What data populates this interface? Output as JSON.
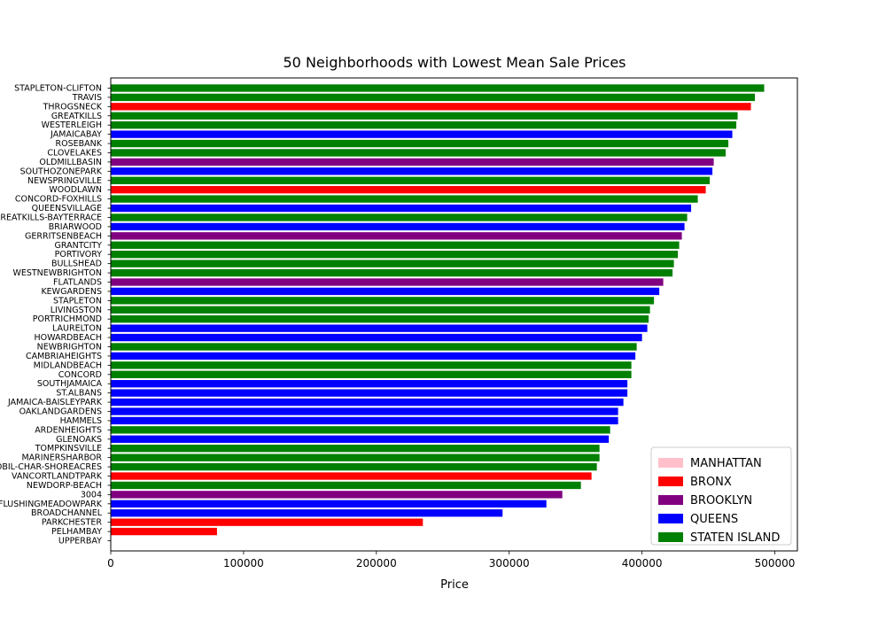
{
  "chart_data": {
    "type": "bar",
    "orientation": "horizontal",
    "title": "50 Neighborhoods with Lowest Mean Sale Prices",
    "xlabel": "Price",
    "ylabel": "",
    "xlim": [
      0,
      517000
    ],
    "xticks": [
      0,
      100000,
      200000,
      300000,
      400000,
      500000
    ],
    "grid": false,
    "legend_position": "lower-right",
    "boroughs": [
      {
        "name": "MANHATTAN",
        "color": "#ffc0cb"
      },
      {
        "name": "BRONX",
        "color": "#ff0000"
      },
      {
        "name": "BROOKLYN",
        "color": "#800080"
      },
      {
        "name": "QUEENS",
        "color": "#0000ff"
      },
      {
        "name": "STATEN ISLAND",
        "color": "#008000"
      }
    ],
    "bars": [
      {
        "label": "STAPLETON-CLIFTON",
        "value": 492000,
        "borough": "STATEN ISLAND"
      },
      {
        "label": "TRAVIS",
        "value": 485000,
        "borough": "STATEN ISLAND"
      },
      {
        "label": "THROGSNECK",
        "value": 482000,
        "borough": "BRONX"
      },
      {
        "label": "GREATKILLS",
        "value": 472000,
        "borough": "STATEN ISLAND"
      },
      {
        "label": "WESTERLEIGH",
        "value": 471000,
        "borough": "STATEN ISLAND"
      },
      {
        "label": "JAMAICABAY",
        "value": 468000,
        "borough": "QUEENS"
      },
      {
        "label": "ROSEBANK",
        "value": 465000,
        "borough": "STATEN ISLAND"
      },
      {
        "label": "CLOVELAKES",
        "value": 463000,
        "borough": "STATEN ISLAND"
      },
      {
        "label": "OLDMILLBASIN",
        "value": 454000,
        "borough": "BROOKLYN"
      },
      {
        "label": "SOUTHOZONEPARK",
        "value": 453000,
        "borough": "QUEENS"
      },
      {
        "label": "NEWSPRINGVILLE",
        "value": 451000,
        "borough": "STATEN ISLAND"
      },
      {
        "label": "WOODLAWN",
        "value": 448000,
        "borough": "BRONX"
      },
      {
        "label": "CONCORD-FOXHILLS",
        "value": 442000,
        "borough": "STATEN ISLAND"
      },
      {
        "label": "QUEENSVILLAGE",
        "value": 437000,
        "borough": "QUEENS"
      },
      {
        "label": "GREATKILLS-BAYTERRACE",
        "value": 434000,
        "borough": "STATEN ISLAND"
      },
      {
        "label": "BRIARWOOD",
        "value": 432000,
        "borough": "QUEENS"
      },
      {
        "label": "GERRITSENBEACH",
        "value": 430000,
        "borough": "BROOKLYN"
      },
      {
        "label": "GRANTCITY",
        "value": 428000,
        "borough": "STATEN ISLAND"
      },
      {
        "label": "PORTIVORY",
        "value": 427000,
        "borough": "STATEN ISLAND"
      },
      {
        "label": "BULLSHEAD",
        "value": 424000,
        "borough": "STATEN ISLAND"
      },
      {
        "label": "WESTNEWBRIGHTON",
        "value": 423000,
        "borough": "STATEN ISLAND"
      },
      {
        "label": "FLATLANDS",
        "value": 416000,
        "borough": "BROOKLYN"
      },
      {
        "label": "KEWGARDENS",
        "value": 413000,
        "borough": "QUEENS"
      },
      {
        "label": "STAPLETON",
        "value": 409000,
        "borough": "STATEN ISLAND"
      },
      {
        "label": "LIVINGSTON",
        "value": 406000,
        "borough": "STATEN ISLAND"
      },
      {
        "label": "PORTRICHMOND",
        "value": 405000,
        "borough": "STATEN ISLAND"
      },
      {
        "label": "LAURELTON",
        "value": 404000,
        "borough": "QUEENS"
      },
      {
        "label": "HOWARDBEACH",
        "value": 400000,
        "borough": "QUEENS"
      },
      {
        "label": "NEWBRIGHTON",
        "value": 396000,
        "borough": "STATEN ISLAND"
      },
      {
        "label": "CAMBRIAHEIGHTS",
        "value": 395000,
        "borough": "QUEENS"
      },
      {
        "label": "MIDLANDBEACH",
        "value": 392000,
        "borough": "STATEN ISLAND"
      },
      {
        "label": "CONCORD",
        "value": 392000,
        "borough": "STATEN ISLAND"
      },
      {
        "label": "SOUTHJAMAICA",
        "value": 389000,
        "borough": "QUEENS"
      },
      {
        "label": "ST.ALBANS",
        "value": 389000,
        "borough": "QUEENS"
      },
      {
        "label": "JAMAICA-BAISLEYPARK",
        "value": 386000,
        "borough": "QUEENS"
      },
      {
        "label": "OAKLANDGARDENS",
        "value": 382000,
        "borough": "QUEENS"
      },
      {
        "label": "HAMMELS",
        "value": 382000,
        "borough": "QUEENS"
      },
      {
        "label": "ARDENHEIGHTS",
        "value": 376000,
        "borough": "STATEN ISLAND"
      },
      {
        "label": "GLENOAKS",
        "value": 375000,
        "borough": "QUEENS"
      },
      {
        "label": "TOMPKINSVILLE",
        "value": 368000,
        "borough": "STATEN ISLAND"
      },
      {
        "label": "MARINERSHARBOR",
        "value": 368000,
        "borough": "STATEN ISLAND"
      },
      {
        "label": "ROSSVILLE-PORTMOBIL-CHAR-SHOREACRES",
        "value": 366000,
        "borough": "STATEN ISLAND"
      },
      {
        "label": "VANCORTLANDTPARK",
        "value": 362000,
        "borough": "BRONX"
      },
      {
        "label": "NEWDORP-BEACH",
        "value": 354000,
        "borough": "STATEN ISLAND"
      },
      {
        "label": "3004",
        "value": 340000,
        "borough": "BROOKLYN"
      },
      {
        "label": "FLUSHINGMEADOWPARK",
        "value": 328000,
        "borough": "QUEENS"
      },
      {
        "label": "BROADCHANNEL",
        "value": 295000,
        "borough": "QUEENS"
      },
      {
        "label": "PARKCHESTER",
        "value": 235000,
        "borough": "BRONX"
      },
      {
        "label": "PELHAMBAY",
        "value": 80000,
        "borough": "BRONX"
      },
      {
        "label": "UPPERBAY",
        "value": 0,
        "borough": "QUEENS"
      }
    ]
  }
}
